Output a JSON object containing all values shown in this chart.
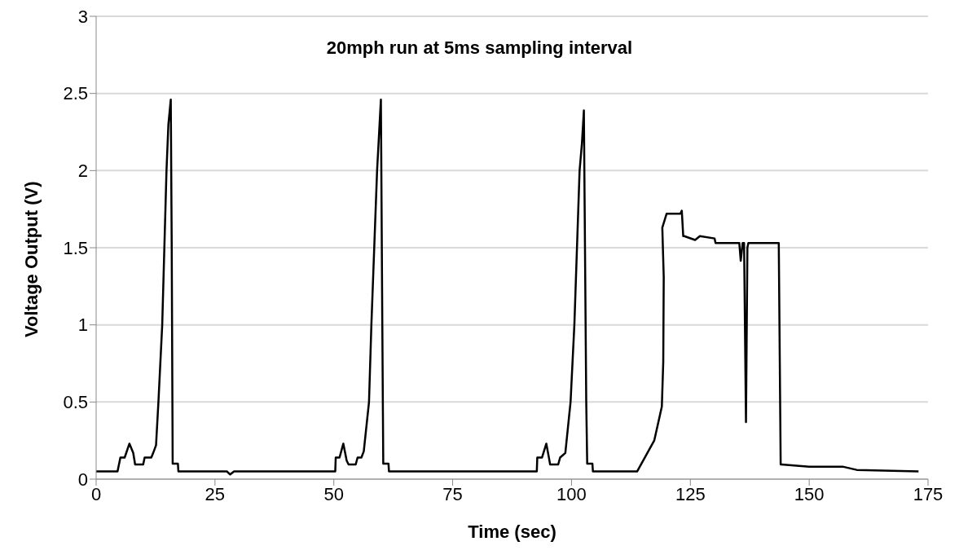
{
  "chart_data": {
    "type": "line",
    "title": "20mph run at 5ms sampling interval",
    "xlabel": "Time (sec)",
    "ylabel": "Voltage Output (V)",
    "x": [
      0,
      4.5,
      5.1,
      6.0,
      7.0,
      7.8,
      8.2,
      9.9,
      10.2,
      11.6,
      12.0,
      12.6,
      13.1,
      13.9,
      14.8,
      15.2,
      15.7,
      15.9,
      16.1,
      17.2,
      17.3,
      27.5,
      28.2,
      29.0,
      50.3,
      50.4,
      51.2,
      52.0,
      52.7,
      53.1,
      54.6,
      55.0,
      55.8,
      56.3,
      57.4,
      57.9,
      59.1,
      59.9,
      60.2,
      60.4,
      61.5,
      61.6,
      92.7,
      92.8,
      93.8,
      94.7,
      95.3,
      95.5,
      97.2,
      97.6,
      98.7,
      99.8,
      100.6,
      101.7,
      102.2,
      102.6,
      103.1,
      103.3,
      104.4,
      104.5,
      113.8,
      117.4,
      119.0,
      119.3,
      119.4,
      119.1,
      120.0,
      122.9,
      123.2,
      123.5,
      123.7,
      126.0,
      127.0,
      130.1,
      130.3,
      135.3,
      135.6,
      136.0,
      136.3,
      136.7,
      137.0,
      137.2,
      143.6,
      144.0,
      144.2,
      150.0,
      157.2,
      160.0,
      173.0
    ],
    "series": [
      {
        "color": "#000000",
        "values": [
          0.05,
          0.05,
          0.14,
          0.14,
          0.23,
          0.17,
          0.095,
          0.095,
          0.14,
          0.14,
          0.17,
          0.22,
          0.5,
          1.0,
          2.0,
          2.3,
          2.46,
          1.5,
          0.1,
          0.1,
          0.05,
          0.05,
          0.03,
          0.05,
          0.05,
          0.14,
          0.14,
          0.23,
          0.12,
          0.095,
          0.095,
          0.14,
          0.14,
          0.18,
          0.5,
          1.0,
          2.0,
          2.46,
          1.0,
          0.1,
          0.1,
          0.05,
          0.05,
          0.14,
          0.14,
          0.23,
          0.13,
          0.095,
          0.095,
          0.14,
          0.17,
          0.5,
          1.0,
          2.0,
          2.18,
          2.39,
          0.5,
          0.1,
          0.1,
          0.05,
          0.05,
          0.25,
          0.47,
          0.76,
          1.31,
          1.63,
          1.72,
          1.72,
          1.74,
          1.575,
          1.575,
          1.55,
          1.575,
          1.56,
          1.53,
          1.53,
          1.415,
          1.53,
          1.53,
          0.37,
          1.5,
          1.53,
          1.53,
          0.095,
          0.095,
          0.08,
          0.08,
          0.06,
          0.05
        ]
      }
    ],
    "xlim": [
      0,
      175
    ],
    "xticks": [
      0,
      25,
      50,
      75,
      100,
      125,
      150,
      175
    ],
    "ylim": [
      0,
      3
    ],
    "yticks": [
      0,
      0.5,
      1,
      1.5,
      2,
      2.5,
      3
    ],
    "grid": "y",
    "legend": false,
    "marker": "none",
    "line_style": "solid"
  }
}
